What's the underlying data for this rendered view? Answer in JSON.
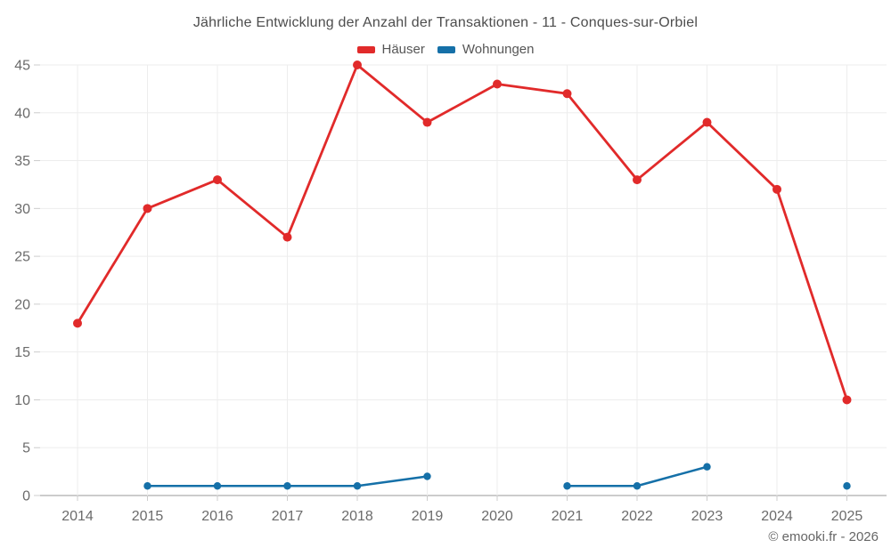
{
  "title": "Jährliche Entwicklung der Anzahl der Transaktionen - 11 - Conques-sur-Orbiel",
  "footer": {
    "credit": "© emooki.fr - 2026"
  },
  "colors": {
    "haeuser": "#e12a2a",
    "wohnungen": "#1570a8",
    "grid": "#ededed",
    "axis_line": "#999999",
    "tick": "#cccccc",
    "axis_text": "#6b6b6b"
  },
  "chart_data": {
    "type": "line",
    "title": "Jährliche Entwicklung der Anzahl der Transaktionen - 11 - Conques-sur-Orbiel",
    "categories": [
      "2014",
      "2015",
      "2016",
      "2017",
      "2018",
      "2019",
      "2020",
      "2021",
      "2022",
      "2023",
      "2024",
      "2025"
    ],
    "series": [
      {
        "name": "Häuser",
        "color": "#e12a2a",
        "values": [
          18,
          30,
          33,
          27,
          45,
          39,
          43,
          42,
          33,
          39,
          32,
          10
        ]
      },
      {
        "name": "Wohnungen",
        "color": "#1570a8",
        "values": [
          null,
          1,
          1,
          1,
          1,
          2,
          null,
          1,
          1,
          3,
          null,
          1
        ]
      }
    ],
    "xlabel": "",
    "ylabel": "",
    "ylim": [
      0,
      45
    ],
    "yticks": [
      0,
      5,
      10,
      15,
      20,
      25,
      30,
      35,
      40,
      45
    ],
    "grid": true,
    "legend_position": "top"
  }
}
